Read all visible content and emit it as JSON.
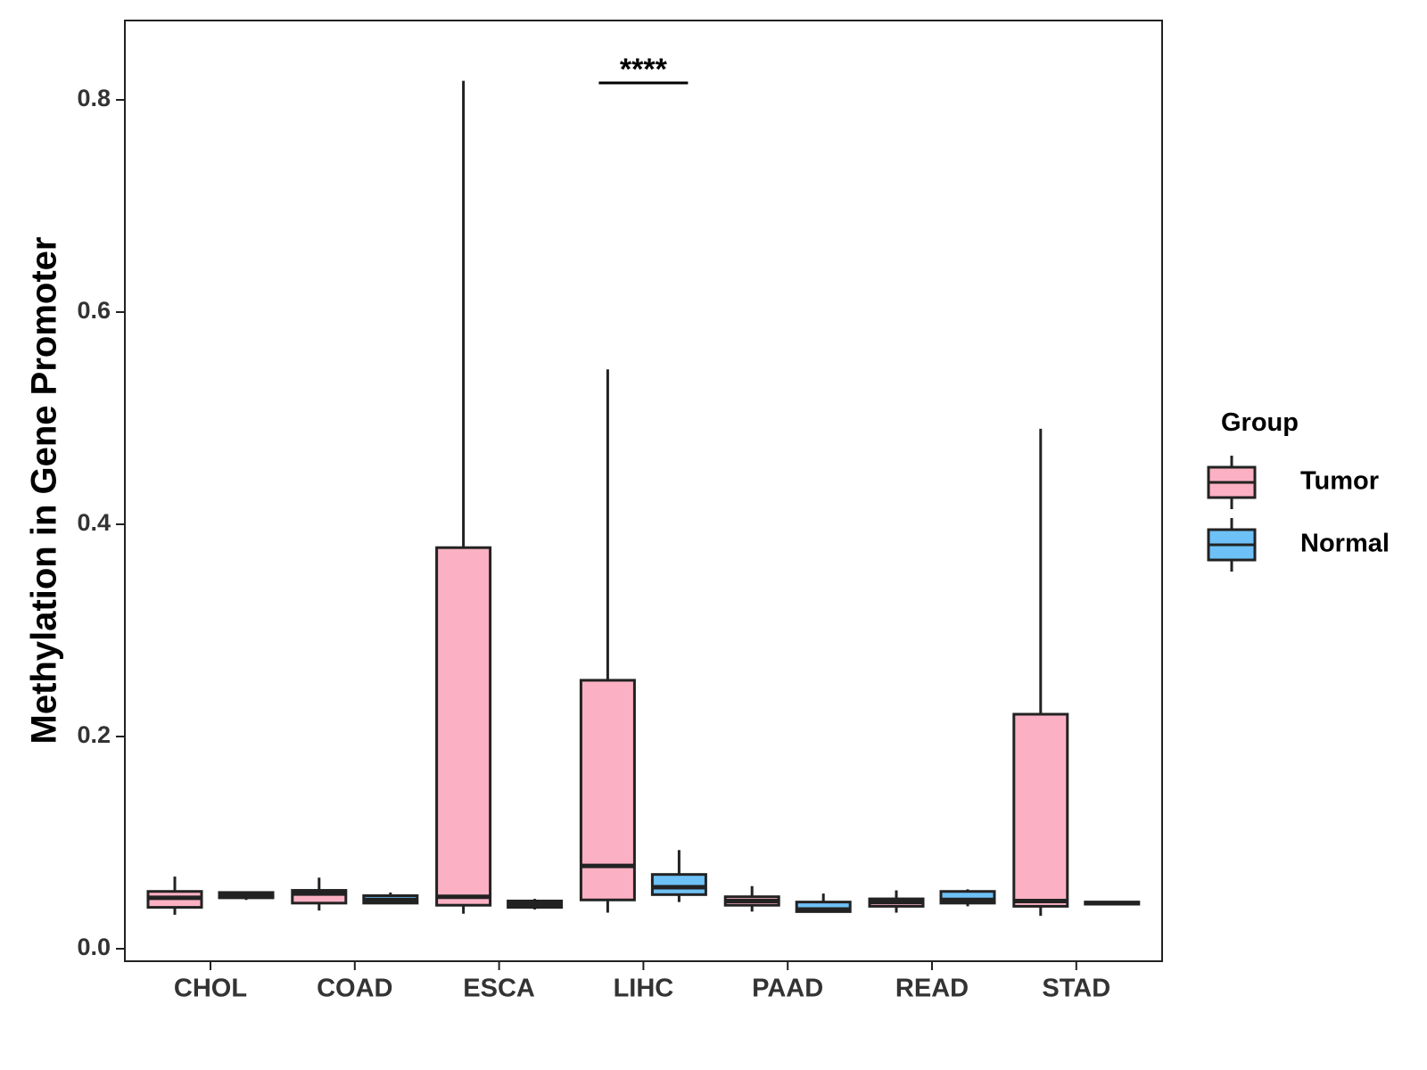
{
  "chart_data": {
    "type": "boxplot",
    "title": "",
    "xlabel": "",
    "ylabel": "Methylation in Gene Promoter",
    "ylim": [
      -0.01,
      0.87
    ],
    "yticks": [
      0.0,
      0.2,
      0.4,
      0.6,
      0.8
    ],
    "ytick_labels": [
      "0.0",
      "0.2",
      "0.4",
      "0.6",
      "0.8"
    ],
    "grid": false,
    "categories": [
      "CHOL",
      "COAD",
      "ESCA",
      "LIHC",
      "PAAD",
      "READ",
      "STAD"
    ],
    "legend": {
      "title": "Group",
      "placement": "right",
      "entries": [
        {
          "name": "Tumor",
          "color": "#FBB1C3"
        },
        {
          "name": "Normal",
          "color": "#6EC1F7"
        }
      ]
    },
    "series": [
      {
        "name": "Tumor",
        "color": "#FBB1C3",
        "boxes": [
          {
            "category": "CHOL",
            "min": 0.032,
            "q1": 0.039,
            "median": 0.048,
            "q3": 0.054,
            "max": 0.068
          },
          {
            "category": "COAD",
            "min": 0.036,
            "q1": 0.043,
            "median": 0.052,
            "q3": 0.055,
            "max": 0.067
          },
          {
            "category": "ESCA",
            "min": 0.033,
            "q1": 0.041,
            "median": 0.049,
            "q3": 0.378,
            "max": 0.818
          },
          {
            "category": "LIHC",
            "min": 0.034,
            "q1": 0.046,
            "median": 0.078,
            "q3": 0.253,
            "max": 0.546
          },
          {
            "category": "PAAD",
            "min": 0.035,
            "q1": 0.041,
            "median": 0.045,
            "q3": 0.049,
            "max": 0.059
          },
          {
            "category": "READ",
            "min": 0.034,
            "q1": 0.04,
            "median": 0.044,
            "q3": 0.047,
            "max": 0.055
          },
          {
            "category": "STAD",
            "min": 0.031,
            "q1": 0.04,
            "median": 0.045,
            "q3": 0.221,
            "max": 0.49
          }
        ]
      },
      {
        "name": "Normal",
        "color": "#6EC1F7",
        "boxes": [
          {
            "category": "CHOL",
            "min": 0.046,
            "q1": 0.048,
            "median": 0.051,
            "q3": 0.053,
            "max": 0.054
          },
          {
            "category": "COAD",
            "min": 0.042,
            "q1": 0.043,
            "median": 0.046,
            "q3": 0.05,
            "max": 0.053
          },
          {
            "category": "ESCA",
            "min": 0.037,
            "q1": 0.039,
            "median": 0.042,
            "q3": 0.045,
            "max": 0.047
          },
          {
            "category": "LIHC",
            "min": 0.044,
            "q1": 0.051,
            "median": 0.058,
            "q3": 0.07,
            "max": 0.093
          },
          {
            "category": "PAAD",
            "min": 0.034,
            "q1": 0.035,
            "median": 0.037,
            "q3": 0.044,
            "max": 0.052
          },
          {
            "category": "READ",
            "min": 0.04,
            "q1": 0.043,
            "median": 0.046,
            "q3": 0.054,
            "max": 0.056
          },
          {
            "category": "STAD",
            "min": 0.042,
            "q1": 0.042,
            "median": 0.043,
            "q3": 0.044,
            "max": 0.045
          }
        ]
      }
    ],
    "annotations": [
      {
        "category": "LIHC",
        "text": "****",
        "y": 0.816
      }
    ]
  }
}
